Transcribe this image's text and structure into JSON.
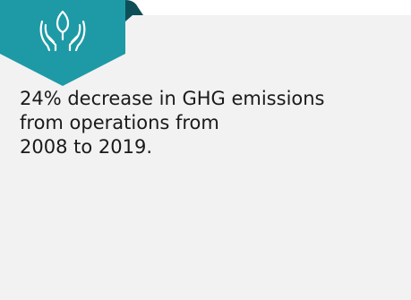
{
  "stat": {
    "line1": "24% decrease in GHG emissions",
    "line2": "from operations from",
    "line3": "2008 to 2019."
  },
  "badge": {
    "icon": "hands-leaf-icon",
    "colors": {
      "front": "#1d9aa6",
      "back": "#0d4f57",
      "stroke": "#ffffff"
    }
  }
}
